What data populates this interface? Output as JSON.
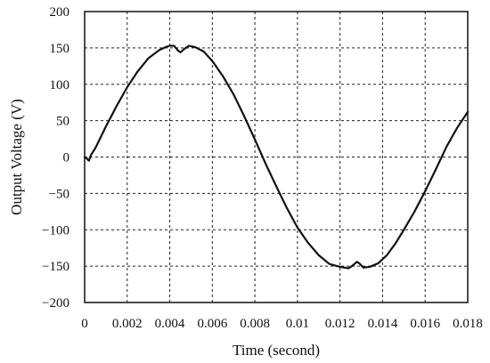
{
  "chart_data": {
    "type": "line",
    "xlabel": "Time (second)",
    "ylabel": "Output Voltage (V)",
    "xlim": [
      0,
      0.018
    ],
    "ylim": [
      -200,
      200
    ],
    "grid": true,
    "x_ticks": [
      0,
      0.002,
      0.004,
      0.006,
      0.008,
      0.01,
      0.012,
      0.014,
      0.016,
      0.018
    ],
    "y_ticks": [
      200,
      150,
      100,
      50,
      0,
      -50,
      -100,
      -150,
      -200
    ],
    "x_tick_labels": [
      "0",
      "0.002",
      "0.004",
      "0.006",
      "0.008",
      "0.01",
      "0.012",
      "0.014",
      "0.016",
      "0.018"
    ],
    "y_tick_labels": [
      "200",
      "150",
      "100",
      "50",
      "0",
      "−50",
      "−100",
      "−150",
      "−200"
    ],
    "series": [
      {
        "x": [
          0,
          0.0001,
          0.0002,
          0.0003,
          0.0005,
          0.001,
          0.0015,
          0.002,
          0.0025,
          0.003,
          0.0035,
          0.0038,
          0.004,
          0.0042,
          0.0044,
          0.0045,
          0.0047,
          0.0049,
          0.0052,
          0.0056,
          0.006,
          0.0065,
          0.007,
          0.0075,
          0.008,
          0.0085,
          0.009,
          0.0095,
          0.01,
          0.0105,
          0.011,
          0.0115,
          0.012,
          0.0124,
          0.0126,
          0.0128,
          0.0129,
          0.0131,
          0.0134,
          0.0138,
          0.0142,
          0.0146,
          0.015,
          0.0155,
          0.016,
          0.0165,
          0.017,
          0.0175,
          0.018
        ],
        "y": [
          0,
          -2,
          -5,
          3,
          12,
          42,
          70,
          96,
          118,
          136,
          147,
          151,
          153,
          153,
          146,
          144,
          149,
          153,
          151,
          145,
          132,
          111,
          86,
          56,
          24,
          -9,
          -40,
          -70,
          -97,
          -118,
          -135,
          -147,
          -151,
          -153,
          -149,
          -144,
          -146,
          -152,
          -151,
          -146,
          -135,
          -119,
          -100,
          -75,
          -47,
          -17,
          14,
          40,
          62
        ]
      }
    ]
  }
}
